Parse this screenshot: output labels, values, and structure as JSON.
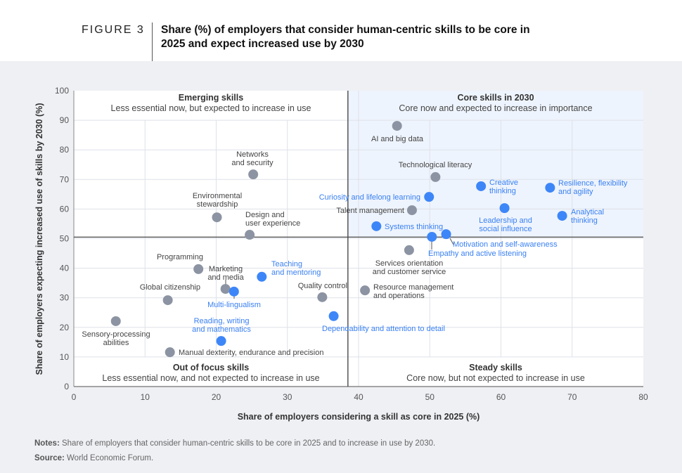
{
  "header": {
    "figure_label": "FIGURE 3",
    "title": "Share (%) of employers that consider human-centric skills to be core in 2025 and expect increased use by 2030"
  },
  "footer": {
    "notes_label": "Notes:",
    "notes": "Share of employers that consider human-centric skills to be core in 2025 and to increase in use by 2030.",
    "source_label": "Source:",
    "source": "World Economic Forum."
  },
  "colors": {
    "human_centric": "#3d86f8",
    "other": "#8c94a3",
    "core_quadrant": "#eef4fd",
    "label_blue": "#3a80f2",
    "label_gray": "#444444"
  },
  "chart_data": {
    "type": "scatter",
    "xlabel": "Share of employers considering a skill as core in 2025 (%)",
    "ylabel": "Share of employers expecting increased use of skills by 2030 (%)",
    "xlim": [
      0,
      80
    ],
    "ylim": [
      0,
      100
    ],
    "xticks": [
      0,
      10,
      20,
      30,
      40,
      50,
      60,
      70,
      80
    ],
    "yticks": [
      0,
      10,
      20,
      30,
      40,
      50,
      60,
      70,
      80,
      90,
      100
    ],
    "grid": true,
    "dividers": {
      "x": 38.5,
      "y": 50.5
    },
    "quadrants": [
      {
        "title": "Emerging skills",
        "subtitle": "Less essential now, but expected to increase in use"
      },
      {
        "title": "Core skills in 2030",
        "subtitle": "Core now and expected to increase in importance"
      },
      {
        "title": "Out of focus skills",
        "subtitle": "Less essential now, and not expected to increase in use"
      },
      {
        "title": "Steady skills",
        "subtitle": "Core now, but not expected to increase in use"
      }
    ],
    "points": [
      {
        "label": "AI and big data",
        "x": 45.4,
        "y": 88.1,
        "human_centric": false
      },
      {
        "label": "Technological literacy",
        "x": 50.8,
        "y": 70.8,
        "human_centric": false
      },
      {
        "label": "Creative thinking",
        "x": 57.2,
        "y": 67.7,
        "human_centric": true
      },
      {
        "label": "Resilience, flexibility and agility",
        "x": 66.9,
        "y": 67.2,
        "human_centric": true
      },
      {
        "label": "Curiosity and lifelong learning",
        "x": 49.9,
        "y": 64.1,
        "human_centric": true
      },
      {
        "label": "Talent management",
        "x": 47.5,
        "y": 59.6,
        "human_centric": false
      },
      {
        "label": "Leadership and social influence",
        "x": 60.5,
        "y": 60.3,
        "human_centric": true
      },
      {
        "label": "Analytical thinking",
        "x": 68.6,
        "y": 57.7,
        "human_centric": true
      },
      {
        "label": "Systems thinking",
        "x": 42.5,
        "y": 54.2,
        "human_centric": true
      },
      {
        "label": "Empathy and active listening",
        "x": 50.3,
        "y": 50.6,
        "human_centric": true
      },
      {
        "label": "Motivation and self-awareness",
        "x": 52.3,
        "y": 51.5,
        "human_centric": true
      },
      {
        "label": "Services orientation and customer service",
        "x": 47.1,
        "y": 46.1,
        "human_centric": false
      },
      {
        "label": "Resource management and operations",
        "x": 40.9,
        "y": 32.5,
        "human_centric": false
      },
      {
        "label": "Dependability and attention to detail",
        "x": 36.5,
        "y": 23.8,
        "human_centric": true
      },
      {
        "label": "Quality control",
        "x": 34.9,
        "y": 30.2,
        "human_centric": false
      },
      {
        "label": "Teaching and mentoring",
        "x": 26.4,
        "y": 37.1,
        "human_centric": true
      },
      {
        "label": "Networks and security",
        "x": 25.2,
        "y": 71.7,
        "human_centric": false
      },
      {
        "label": "Environmental stewardship",
        "x": 20.1,
        "y": 57.2,
        "human_centric": false
      },
      {
        "label": "Design and user experience",
        "x": 24.7,
        "y": 51.3,
        "human_centric": false
      },
      {
        "label": "Programming",
        "x": 17.5,
        "y": 39.7,
        "human_centric": false
      },
      {
        "label": "Marketing and media",
        "x": 21.3,
        "y": 33.0,
        "human_centric": false
      },
      {
        "label": "Multi-lingualism",
        "x": 22.5,
        "y": 32.1,
        "human_centric": true
      },
      {
        "label": "Global citizenship",
        "x": 13.2,
        "y": 29.2,
        "human_centric": false
      },
      {
        "label": "Sensory-processing abilities",
        "x": 5.9,
        "y": 22.1,
        "human_centric": false
      },
      {
        "label": "Reading, writing and mathematics",
        "x": 20.7,
        "y": 15.4,
        "human_centric": true
      },
      {
        "label": "Manual dexterity, endurance and precision",
        "x": 13.5,
        "y": 11.6,
        "human_centric": false
      }
    ]
  }
}
